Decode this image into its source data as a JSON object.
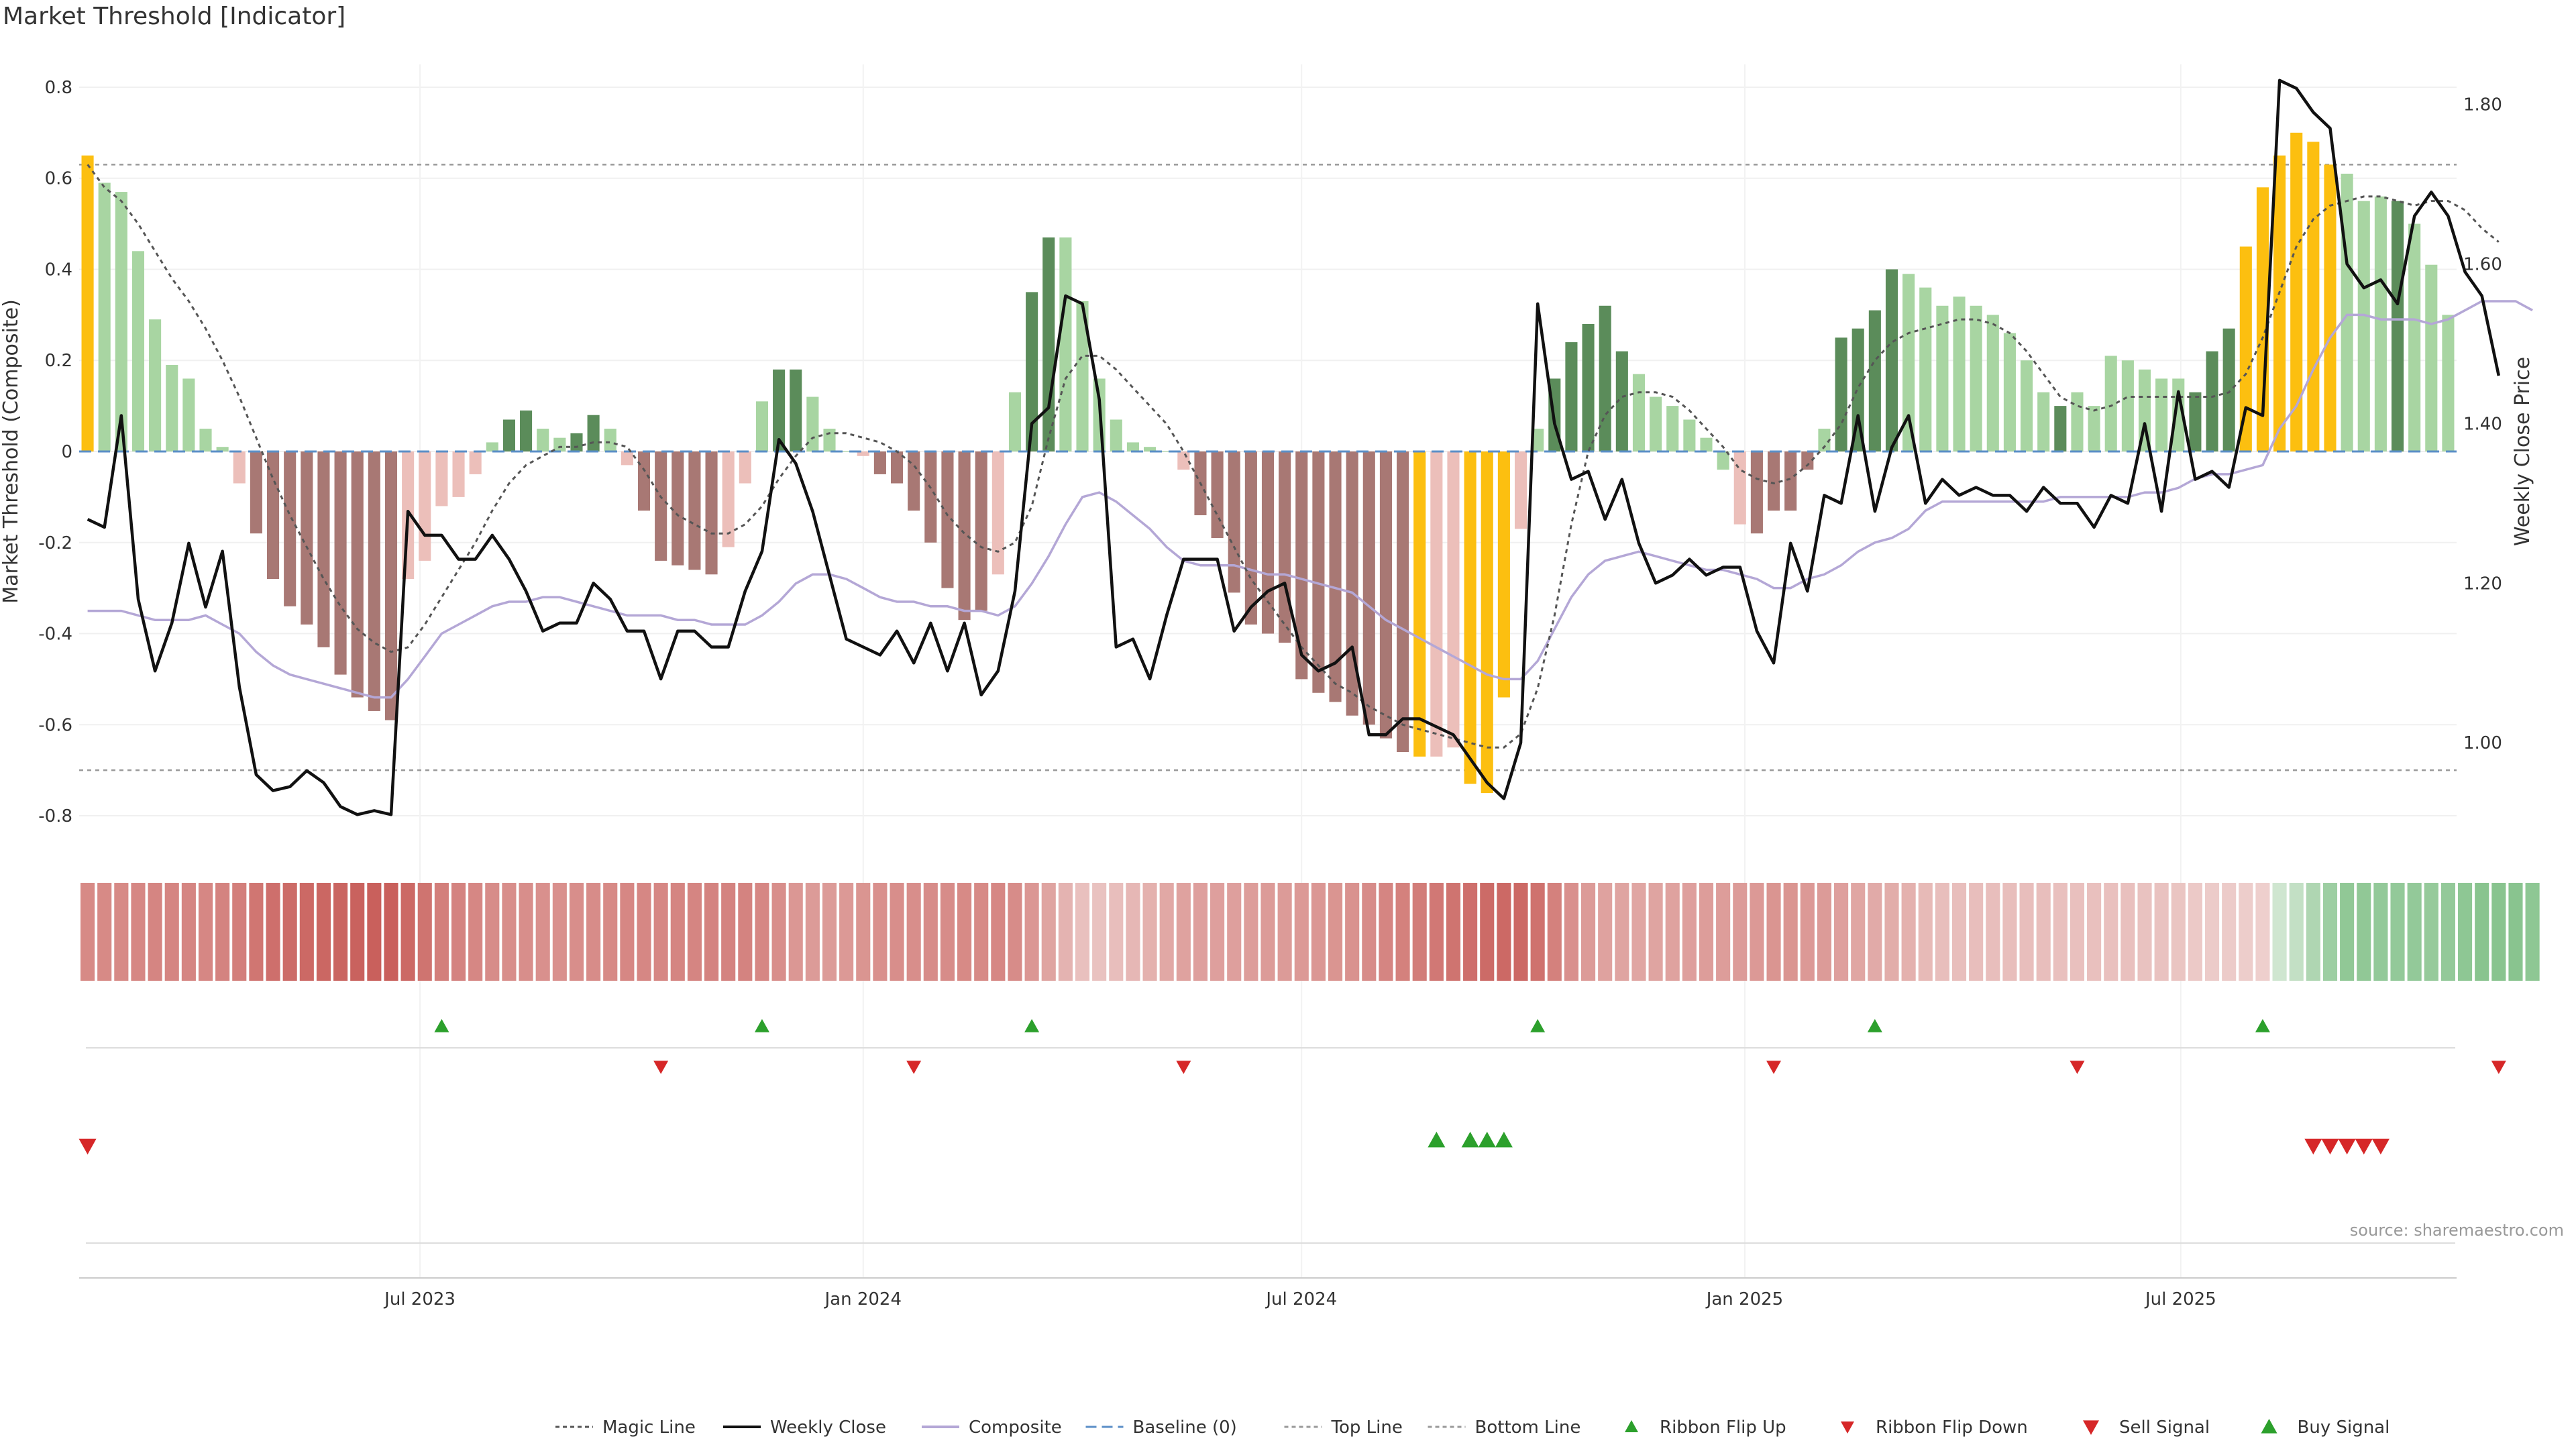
{
  "title": "Market Threshold [Indicator]",
  "source": "source: sharemaestro.com",
  "colors": {
    "strong_up": "#5b8c5a",
    "up": "#a8d5a2",
    "strong_down": "#a87874",
    "down": "#ecbfba",
    "extreme": "#fcbf10",
    "weekly_close": "#111111",
    "composite": "#b4a7d6",
    "magic": "#555555",
    "baseline": "#5b8fc7",
    "threshold_line": "#999999",
    "buy": "#2ca02c",
    "sell": "#d62728"
  },
  "chart_data": {
    "type": "bar",
    "x_start": "2023-02-13",
    "x_ticks": [
      "Jul 2023",
      "Jan 2024",
      "Jul 2024",
      "Jan 2025",
      "Jul 2025"
    ],
    "x_tick_dates": [
      "2023-07-01",
      "2024-01-01",
      "2024-07-01",
      "2025-01-01",
      "2025-07-01"
    ],
    "ylabel": "Market Threshold (Composite)",
    "ylim": [
      -0.85,
      0.85
    ],
    "yticks": [
      "0.8",
      "0.6",
      "0.4",
      "0.2",
      "0",
      "-0.2",
      "-0.4",
      "-0.6",
      "-0.8"
    ],
    "y2label": "Weekly Close Price",
    "y2lim": [
      0.88,
      1.85
    ],
    "y2ticks": [
      "1.80",
      "1.60",
      "1.40",
      "1.20",
      "1.00"
    ],
    "top_line": 0.63,
    "bottom_line": -0.7,
    "baseline": 0,
    "bars": [
      0.65,
      0.59,
      0.57,
      0.44,
      0.29,
      0.19,
      0.16,
      0.05,
      0.01,
      -0.07,
      -0.18,
      -0.28,
      -0.34,
      -0.38,
      -0.43,
      -0.49,
      -0.54,
      -0.57,
      -0.59,
      -0.28,
      -0.24,
      -0.12,
      -0.1,
      -0.05,
      0.02,
      0.07,
      0.09,
      0.05,
      0.03,
      0.04,
      0.08,
      0.05,
      -0.03,
      -0.13,
      -0.24,
      -0.25,
      -0.26,
      -0.27,
      -0.21,
      -0.07,
      0.11,
      0.18,
      0.18,
      0.12,
      0.05,
      0.0,
      -0.01,
      -0.05,
      -0.07,
      -0.13,
      -0.2,
      -0.3,
      -0.37,
      -0.35,
      -0.27,
      0.13,
      0.35,
      0.47,
      0.47,
      0.33,
      0.16,
      0.07,
      0.02,
      0.01,
      0.0,
      -0.04,
      -0.14,
      -0.19,
      -0.31,
      -0.38,
      -0.4,
      -0.42,
      -0.5,
      -0.53,
      -0.55,
      -0.58,
      -0.6,
      -0.63,
      -0.66,
      -0.67,
      -0.67,
      -0.65,
      -0.73,
      -0.75,
      -0.54,
      -0.17,
      0.05,
      0.16,
      0.24,
      0.28,
      0.32,
      0.22,
      0.17,
      0.12,
      0.1,
      0.07,
      0.03,
      -0.04,
      -0.16,
      -0.18,
      -0.13,
      -0.13,
      -0.04,
      0.05,
      0.25,
      0.27,
      0.31,
      0.4,
      0.39,
      0.36,
      0.32,
      0.34,
      0.32,
      0.3,
      0.26,
      0.2,
      0.13,
      0.1,
      0.13,
      0.1,
      0.21,
      0.2,
      0.18,
      0.16,
      0.16,
      0.13,
      0.22,
      0.27,
      0.45,
      0.58,
      0.65,
      0.7,
      0.68,
      0.63,
      0.61,
      0.55,
      0.56,
      0.55,
      0.5,
      0.41,
      0.3
    ],
    "bar_classes": [
      "x",
      "u",
      "u",
      "u",
      "u",
      "u",
      "u",
      "u",
      "u",
      "d",
      "D",
      "D",
      "D",
      "D",
      "D",
      "D",
      "D",
      "D",
      "D",
      "d",
      "d",
      "d",
      "d",
      "d",
      "u",
      "U",
      "U",
      "u",
      "u",
      "U",
      "U",
      "u",
      "d",
      "D",
      "D",
      "D",
      "D",
      "D",
      "d",
      "d",
      "u",
      "U",
      "U",
      "u",
      "u",
      "u",
      "d",
      "D",
      "D",
      "D",
      "D",
      "D",
      "D",
      "D",
      "d",
      "u",
      "U",
      "U",
      "u",
      "u",
      "u",
      "u",
      "u",
      "u",
      "u",
      "d",
      "D",
      "D",
      "D",
      "D",
      "D",
      "D",
      "D",
      "D",
      "D",
      "D",
      "D",
      "D",
      "D",
      "x",
      "d",
      "d",
      "x",
      "x",
      "x",
      "d",
      "u",
      "U",
      "U",
      "U",
      "U",
      "U",
      "u",
      "u",
      "u",
      "u",
      "u",
      "u",
      "d",
      "D",
      "D",
      "D",
      "D",
      "u",
      "U",
      "U",
      "U",
      "U",
      "u",
      "u",
      "u",
      "u",
      "u",
      "u",
      "u",
      "u",
      "u",
      "U",
      "u",
      "u",
      "u",
      "u",
      "u",
      "u",
      "u",
      "U",
      "U",
      "U",
      "x",
      "x",
      "x",
      "x",
      "x",
      "x",
      "u",
      "u",
      "u",
      "U",
      "u",
      "u",
      "u",
      "u"
    ],
    "series": [
      {
        "name": "Weekly Close",
        "axis": "right",
        "values": [
          1.28,
          1.27,
          1.41,
          1.18,
          1.09,
          1.15,
          1.25,
          1.17,
          1.24,
          1.07,
          0.96,
          0.94,
          0.945,
          0.965,
          0.95,
          0.92,
          0.91,
          0.915,
          0.91,
          1.29,
          1.26,
          1.26,
          1.23,
          1.23,
          1.26,
          1.23,
          1.19,
          1.14,
          1.15,
          1.15,
          1.2,
          1.18,
          1.14,
          1.14,
          1.08,
          1.14,
          1.14,
          1.12,
          1.12,
          1.19,
          1.24,
          1.38,
          1.35,
          1.29,
          1.21,
          1.13,
          1.12,
          1.11,
          1.14,
          1.1,
          1.15,
          1.09,
          1.15,
          1.06,
          1.09,
          1.19,
          1.4,
          1.42,
          1.56,
          1.55,
          1.43,
          1.12,
          1.13,
          1.08,
          1.16,
          1.23,
          1.23,
          1.23,
          1.14,
          1.17,
          1.19,
          1.2,
          1.11,
          1.09,
          1.1,
          1.12,
          1.01,
          1.01,
          1.03,
          1.03,
          1.02,
          1.01,
          0.98,
          0.95,
          0.93,
          1.0,
          1.55,
          1.4,
          1.33,
          1.34,
          1.28,
          1.33,
          1.25,
          1.2,
          1.21,
          1.23,
          1.21,
          1.22,
          1.22,
          1.14,
          1.1,
          1.25,
          1.19,
          1.31,
          1.3,
          1.41,
          1.29,
          1.37,
          1.41,
          1.3,
          1.33,
          1.31,
          1.32,
          1.31,
          1.31,
          1.29,
          1.32,
          1.3,
          1.3,
          1.27,
          1.31,
          1.3,
          1.4,
          1.29,
          1.44,
          1.33,
          1.34,
          1.32,
          1.42,
          1.41,
          1.83,
          1.82,
          1.79,
          1.77,
          1.6,
          1.57,
          1.58,
          1.55,
          1.66,
          1.69,
          1.66,
          1.59,
          1.56,
          1.46
        ]
      },
      {
        "name": "Composite",
        "axis": "left",
        "values": [
          -0.35,
          -0.35,
          -0.35,
          -0.36,
          -0.37,
          -0.37,
          -0.37,
          -0.36,
          -0.38,
          -0.4,
          -0.44,
          -0.47,
          -0.49,
          -0.5,
          -0.51,
          -0.52,
          -0.53,
          -0.54,
          -0.54,
          -0.5,
          -0.45,
          -0.4,
          -0.38,
          -0.36,
          -0.34,
          -0.33,
          -0.33,
          -0.32,
          -0.32,
          -0.33,
          -0.34,
          -0.35,
          -0.36,
          -0.36,
          -0.36,
          -0.37,
          -0.37,
          -0.38,
          -0.38,
          -0.38,
          -0.36,
          -0.33,
          -0.29,
          -0.27,
          -0.27,
          -0.28,
          -0.3,
          -0.32,
          -0.33,
          -0.33,
          -0.34,
          -0.34,
          -0.35,
          -0.35,
          -0.36,
          -0.34,
          -0.29,
          -0.23,
          -0.16,
          -0.1,
          -0.09,
          -0.11,
          -0.14,
          -0.17,
          -0.21,
          -0.24,
          -0.25,
          -0.25,
          -0.25,
          -0.26,
          -0.27,
          -0.27,
          -0.28,
          -0.29,
          -0.3,
          -0.31,
          -0.34,
          -0.37,
          -0.39,
          -0.41,
          -0.43,
          -0.45,
          -0.47,
          -0.49,
          -0.5,
          -0.5,
          -0.46,
          -0.39,
          -0.32,
          -0.27,
          -0.24,
          -0.23,
          -0.22,
          -0.23,
          -0.24,
          -0.25,
          -0.26,
          -0.26,
          -0.27,
          -0.28,
          -0.3,
          -0.3,
          -0.28,
          -0.27,
          -0.25,
          -0.22,
          -0.2,
          -0.19,
          -0.17,
          -0.13,
          -0.11,
          -0.11,
          -0.11,
          -0.11,
          -0.11,
          -0.11,
          -0.11,
          -0.1,
          -0.1,
          -0.1,
          -0.1,
          -0.1,
          -0.09,
          -0.09,
          -0.08,
          -0.06,
          -0.05,
          -0.05,
          -0.04,
          -0.03,
          0.05,
          0.1,
          0.18,
          0.25,
          0.3,
          0.3,
          0.29,
          0.29,
          0.29,
          0.28,
          0.29,
          0.31,
          0.33,
          0.33,
          0.33,
          0.31
        ]
      },
      {
        "name": "Magic Line",
        "axis": "left",
        "values": [
          0.63,
          0.58,
          0.55,
          0.5,
          0.44,
          0.38,
          0.33,
          0.27,
          0.2,
          0.12,
          0.03,
          -0.06,
          -0.14,
          -0.21,
          -0.28,
          -0.34,
          -0.39,
          -0.42,
          -0.44,
          -0.43,
          -0.38,
          -0.32,
          -0.26,
          -0.2,
          -0.13,
          -0.07,
          -0.03,
          -0.01,
          0.01,
          0.01,
          0.02,
          0.02,
          0.01,
          -0.04,
          -0.1,
          -0.14,
          -0.16,
          -0.18,
          -0.18,
          -0.16,
          -0.12,
          -0.06,
          -0.01,
          0.03,
          0.04,
          0.04,
          0.03,
          0.02,
          0.0,
          -0.03,
          -0.08,
          -0.14,
          -0.18,
          -0.21,
          -0.22,
          -0.2,
          -0.12,
          0.03,
          0.16,
          0.21,
          0.21,
          0.18,
          0.14,
          0.1,
          0.06,
          0.0,
          -0.07,
          -0.14,
          -0.21,
          -0.28,
          -0.33,
          -0.38,
          -0.43,
          -0.47,
          -0.51,
          -0.53,
          -0.56,
          -0.58,
          -0.6,
          -0.61,
          -0.62,
          -0.63,
          -0.64,
          -0.65,
          -0.65,
          -0.62,
          -0.52,
          -0.36,
          -0.16,
          0.0,
          0.08,
          0.12,
          0.13,
          0.13,
          0.12,
          0.09,
          0.05,
          0.01,
          -0.04,
          -0.06,
          -0.07,
          -0.06,
          -0.03,
          0.01,
          0.06,
          0.14,
          0.2,
          0.24,
          0.26,
          0.27,
          0.28,
          0.29,
          0.29,
          0.28,
          0.26,
          0.22,
          0.17,
          0.12,
          0.1,
          0.09,
          0.1,
          0.12,
          0.12,
          0.12,
          0.12,
          0.12,
          0.12,
          0.13,
          0.17,
          0.25,
          0.35,
          0.45,
          0.51,
          0.54,
          0.55,
          0.56,
          0.56,
          0.55,
          0.54,
          0.55,
          0.55,
          0.53,
          0.49,
          0.46
        ]
      }
    ],
    "signal_rows": [
      {
        "name": "Ribbon Flip Up",
        "weeks": [
          21,
          40,
          56,
          86,
          106,
          129
        ]
      },
      {
        "name": "Ribbon Flip Down",
        "weeks": [
          34,
          49,
          65,
          100,
          118,
          143
        ]
      },
      {
        "name": "Sell Signal",
        "weeks": [
          0,
          132,
          133,
          134,
          135,
          136
        ]
      },
      {
        "name": "Buy Signal",
        "weeks": [
          80,
          82,
          83,
          84
        ]
      }
    ],
    "legend": {
      "position": "bottom-center",
      "items": [
        "Magic Line",
        "Weekly Close",
        "Composite",
        "Baseline (0)",
        "Top Line",
        "Bottom Line",
        "Ribbon Flip Up",
        "Ribbon Flip Down",
        "Sell Signal",
        "Buy Signal"
      ]
    },
    "grid": true
  }
}
